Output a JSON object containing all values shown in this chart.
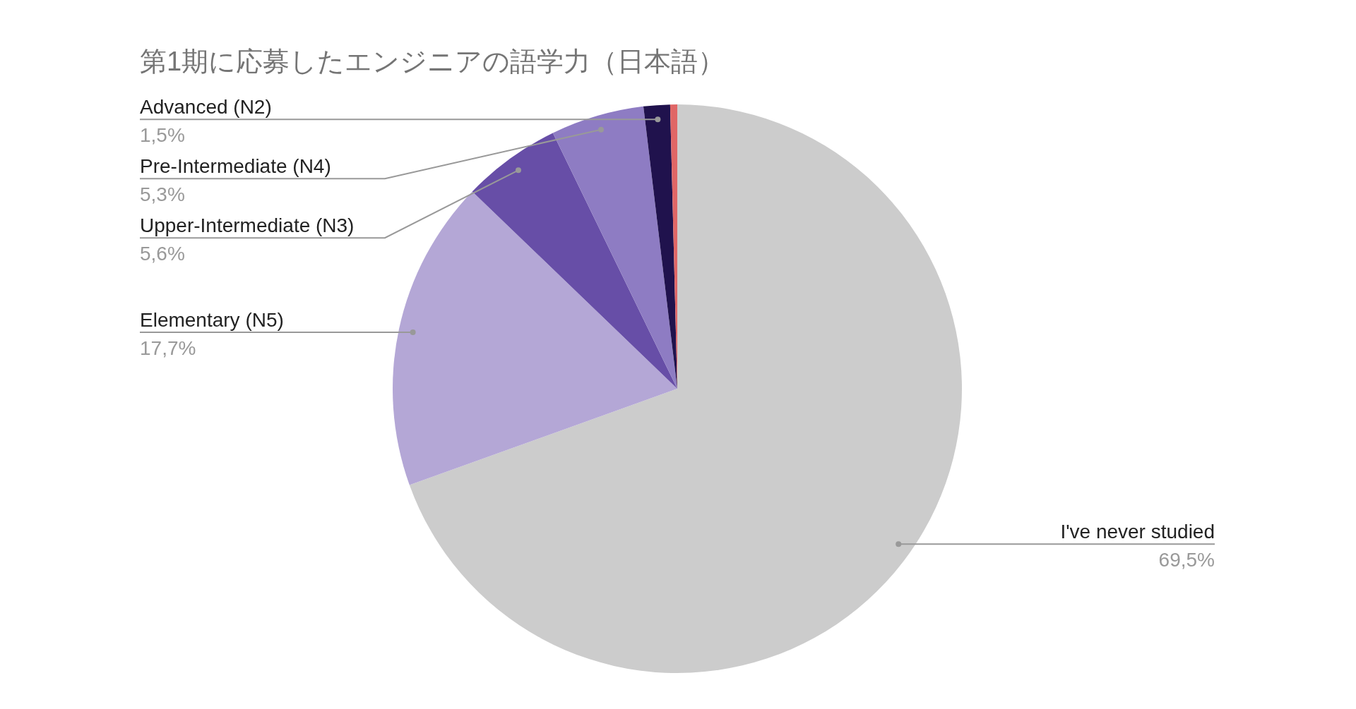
{
  "chart_data": {
    "type": "pie",
    "title": "第1期に応募したエンジニアの語学力（日本語）",
    "categories": [
      "I've never studied",
      "Elementary (N5)",
      "Upper-Intermediate (N3)",
      "Pre-Intermediate (N4)",
      "Advanced (N2)",
      null
    ],
    "values": [
      69.5,
      17.7,
      5.6,
      5.3,
      1.5,
      0.4
    ],
    "colors": [
      "#cccccc",
      "#b4a7d6",
      "#674ea7",
      "#8e7cc3",
      "#20124d",
      "#e06666"
    ],
    "value_labels": [
      "69,5%",
      "17,7%",
      "5,6%",
      "5,3%",
      "1,5%",
      null
    ],
    "legend": false
  }
}
